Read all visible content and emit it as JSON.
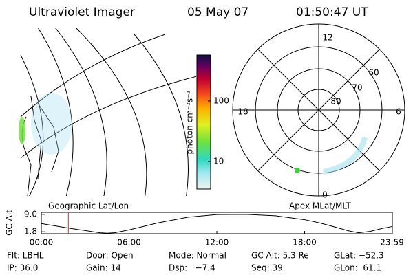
{
  "header": {
    "title": "Ultraviolet Imager",
    "date": "05 May 07",
    "time": "01:50:47 UT"
  },
  "colorbar": {
    "label": "photon cm⁻²s⁻¹",
    "scale": "log",
    "lim": [
      3.5,
      575
    ],
    "ticks": [
      10,
      100
    ]
  },
  "polar": {
    "mlt_labels": [
      "12",
      "18",
      "6",
      "0"
    ],
    "lat_labels": [
      "60",
      "70",
      "80"
    ]
  },
  "panel_labels": {
    "left": "Geographic Lat/Lon",
    "right": "Apex MLat/MLT"
  },
  "chart_data": {
    "type": "line",
    "ylabel": "GC Alt",
    "color": "#000000",
    "x": [
      0,
      1,
      2,
      3,
      4,
      4.5,
      5,
      6,
      8,
      10,
      12,
      14,
      16,
      18,
      19,
      20,
      21,
      21.7,
      22.5,
      23.3,
      24
    ],
    "values": [
      5.2,
      4.2,
      3.2,
      2.3,
      1.4,
      1.2,
      1.4,
      2.6,
      5.5,
      7.8,
      8.9,
      9.0,
      8.4,
      6.8,
      5.5,
      3.9,
      2.2,
      1.4,
      2.0,
      3.2,
      4.0
    ],
    "xlim": [
      0,
      24
    ],
    "ylim": [
      1.0,
      9.8
    ],
    "xticks": [
      {
        "value": 0,
        "label": "00:00"
      },
      {
        "value": 6,
        "label": "06:00"
      },
      {
        "value": 12,
        "label": "12:00"
      },
      {
        "value": 18,
        "label": "18:00"
      },
      {
        "value": 23.98,
        "label": "23:59"
      }
    ],
    "yticks": [
      {
        "value": 9.0,
        "label": "9.0"
      },
      {
        "value": 1.8,
        "label": "1.8"
      }
    ],
    "marker_x": 1.85,
    "marker_color": "#e03030"
  },
  "info": [
    [
      "Flt: LBHL",
      "Door: Open",
      "Mode: Normal",
      "GC Alt: 5.3 Re",
      "GLat: −52.3"
    ],
    [
      "IP: 36.0",
      "Gain: 14",
      "Dsp:   −7.4",
      "Seq: 39",
      "GLon:  61.1"
    ]
  ]
}
